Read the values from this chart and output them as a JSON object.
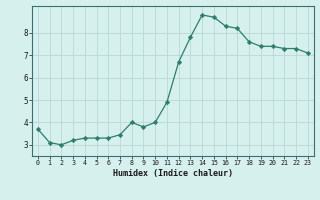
{
  "x": [
    0,
    1,
    2,
    3,
    4,
    5,
    6,
    7,
    8,
    9,
    10,
    11,
    12,
    13,
    14,
    15,
    16,
    17,
    18,
    19,
    20,
    21,
    22,
    23
  ],
  "y": [
    3.7,
    3.1,
    3.0,
    3.2,
    3.3,
    3.3,
    3.3,
    3.45,
    4.0,
    3.8,
    4.0,
    4.9,
    6.7,
    7.8,
    8.8,
    8.7,
    8.3,
    8.2,
    7.6,
    7.4,
    7.4,
    7.3,
    7.3,
    7.1
  ],
  "line_color": "#2e7d6e",
  "marker": "D",
  "marker_size": 2.2,
  "bg_color": "#d6f0ee",
  "grid_color": "#b8d8d5",
  "xlabel": "Humidex (Indice chaleur)",
  "ylabel": "",
  "title": "",
  "xlim": [
    -0.5,
    23.5
  ],
  "ylim": [
    2.5,
    9.2
  ],
  "yticks": [
    3,
    4,
    5,
    6,
    7,
    8
  ],
  "xtick_labels": [
    "0",
    "1",
    "2",
    "3",
    "4",
    "5",
    "6",
    "7",
    "8",
    "9",
    "10",
    "11",
    "12",
    "13",
    "14",
    "15",
    "16",
    "17",
    "18",
    "19",
    "20",
    "21",
    "22",
    "23"
  ]
}
